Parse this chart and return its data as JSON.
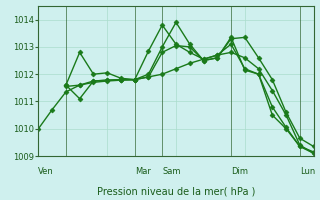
{
  "title": "",
  "xlabel": "Pression niveau de la mer( hPa )",
  "ylabel": "",
  "bg_color": "#cff0ee",
  "grid_color": "#aaddcc",
  "line_color": "#1a7a1a",
  "ylim": [
    1009,
    1014.5
  ],
  "yticks": [
    1009,
    1010,
    1011,
    1012,
    1013,
    1014
  ],
  "x_day_labels": [
    {
      "label": "Ven",
      "x": 0
    },
    {
      "label": "Mar",
      "x": 7
    },
    {
      "label": "Sam",
      "x": 9
    },
    {
      "label": "Dim",
      "x": 14
    },
    {
      "label": "Lun",
      "x": 19
    }
  ],
  "lines": [
    {
      "x": [
        0,
        1,
        2,
        3,
        4,
        5,
        6,
        7,
        8,
        9,
        10,
        11,
        12,
        13,
        14,
        15,
        16,
        17,
        18,
        19,
        20
      ],
      "y": [
        1010.0,
        1010.7,
        1011.35,
        1011.6,
        1011.7,
        1011.75,
        1011.78,
        1011.8,
        1011.9,
        1012.0,
        1012.2,
        1012.4,
        1012.55,
        1012.7,
        1012.8,
        1012.6,
        1012.2,
        1011.4,
        1010.5,
        1009.4,
        1009.1
      ]
    },
    {
      "x": [
        2,
        3,
        4,
        5,
        6,
        7,
        8,
        9,
        10,
        11,
        12,
        13,
        14,
        15,
        16,
        17,
        18,
        19,
        20
      ],
      "y": [
        1011.6,
        1012.8,
        1012.0,
        1012.05,
        1011.85,
        1011.8,
        1012.85,
        1013.8,
        1013.1,
        1012.8,
        1012.55,
        1012.7,
        1013.1,
        1012.2,
        1012.0,
        1010.5,
        1010.0,
        1009.35,
        1009.15
      ]
    },
    {
      "x": [
        2,
        3,
        4,
        5,
        6,
        7,
        8,
        9,
        10,
        11,
        12,
        13,
        14,
        15,
        16,
        17,
        18,
        19,
        20
      ],
      "y": [
        1011.6,
        1011.1,
        1011.75,
        1011.78,
        1011.8,
        1011.8,
        1012.0,
        1013.0,
        1013.9,
        1013.1,
        1012.5,
        1012.6,
        1013.35,
        1012.15,
        1012.0,
        1010.8,
        1010.05,
        1009.35,
        1009.1
      ]
    },
    {
      "x": [
        2,
        3,
        4,
        5,
        6,
        7,
        8,
        9,
        10,
        11,
        12,
        13,
        14,
        15,
        16,
        17,
        18,
        19,
        20
      ],
      "y": [
        1011.55,
        1011.6,
        1011.75,
        1011.78,
        1011.8,
        1011.8,
        1011.9,
        1012.8,
        1013.05,
        1013.0,
        1012.5,
        1012.6,
        1013.3,
        1013.35,
        1012.6,
        1011.8,
        1010.6,
        1009.65,
        1009.35
      ]
    }
  ],
  "vlines_x": [
    2,
    7,
    9,
    14,
    19
  ],
  "marker": "D",
  "markersize": 2.5,
  "linewidth": 1.0
}
